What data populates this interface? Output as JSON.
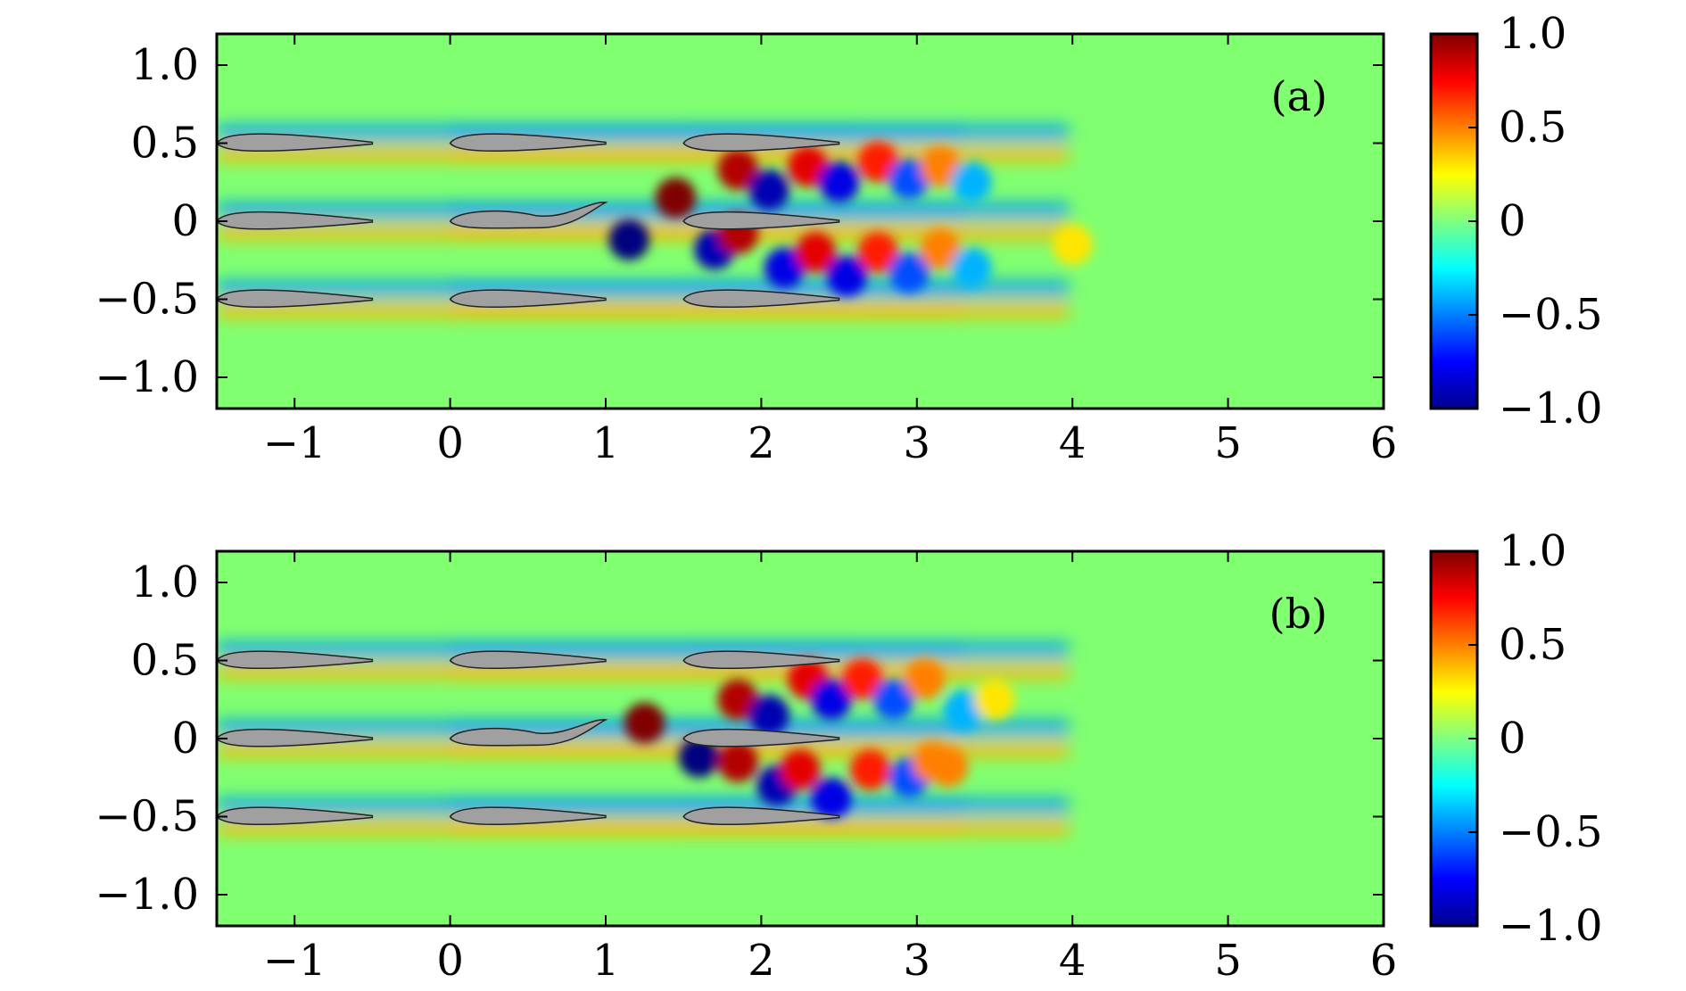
{
  "chart_data": [
    {
      "type": "heatmap",
      "panel_label": "(a)",
      "x_ticks": [
        "−1",
        "0",
        "1",
        "2",
        "3",
        "4",
        "5",
        "6"
      ],
      "x_tick_values": [
        -1,
        0,
        1,
        2,
        3,
        4,
        5,
        6
      ],
      "y_ticks": [
        "1.0",
        "0.5",
        "0",
        "−0.5",
        "−1.0"
      ],
      "y_tick_values": [
        1.0,
        0.5,
        0,
        -0.5,
        -1.0
      ],
      "xlim": [
        -1.5,
        6
      ],
      "ylim": [
        -1.2,
        1.2
      ],
      "colorbar": {
        "ticks": [
          "1.0",
          "0.5",
          "0",
          "−0.5",
          "−1.0"
        ],
        "tick_values": [
          1.0,
          0.5,
          0,
          -0.5,
          -1.0
        ],
        "range": [
          -1.0,
          1.0
        ],
        "colormap": "jet"
      },
      "airfoils": [
        {
          "x_le": -1.5,
          "x_te": -0.5,
          "y": 0.5
        },
        {
          "x_le": -1.5,
          "x_te": -0.5,
          "y": 0.0
        },
        {
          "x_le": -1.5,
          "x_te": -0.5,
          "y": -0.5
        },
        {
          "x_le": 0.0,
          "x_te": 1.0,
          "y": 0.5
        },
        {
          "x_le": 0.0,
          "x_te": 1.0,
          "y": 0.0,
          "deflected": true
        },
        {
          "x_le": 0.0,
          "x_te": 1.0,
          "y": -0.5
        },
        {
          "x_le": 1.5,
          "x_te": 2.5,
          "y": 0.5
        },
        {
          "x_le": 1.5,
          "x_te": 2.5,
          "y": 0.0
        },
        {
          "x_le": 1.5,
          "x_te": 2.5,
          "y": -0.5
        }
      ],
      "vortices": [
        {
          "x": 1.45,
          "y": 0.15,
          "v": 1.0
        },
        {
          "x": 1.15,
          "y": -0.12,
          "v": -1.0
        },
        {
          "x": 1.85,
          "y": 0.33,
          "v": 0.9
        },
        {
          "x": 2.05,
          "y": 0.2,
          "v": -0.9
        },
        {
          "x": 2.3,
          "y": 0.35,
          "v": 0.8
        },
        {
          "x": 2.5,
          "y": 0.25,
          "v": -0.8
        },
        {
          "x": 2.75,
          "y": 0.38,
          "v": 0.7
        },
        {
          "x": 2.95,
          "y": 0.27,
          "v": -0.6
        },
        {
          "x": 3.15,
          "y": 0.35,
          "v": 0.5
        },
        {
          "x": 3.35,
          "y": 0.25,
          "v": -0.4
        },
        {
          "x": 1.7,
          "y": -0.18,
          "v": -0.9
        },
        {
          "x": 1.85,
          "y": -0.08,
          "v": 0.9
        },
        {
          "x": 2.15,
          "y": -0.3,
          "v": -0.8
        },
        {
          "x": 2.35,
          "y": -0.2,
          "v": 0.8
        },
        {
          "x": 2.55,
          "y": -0.35,
          "v": -0.8
        },
        {
          "x": 2.75,
          "y": -0.2,
          "v": 0.7
        },
        {
          "x": 2.95,
          "y": -0.33,
          "v": -0.6
        },
        {
          "x": 3.15,
          "y": -0.18,
          "v": 0.5
        },
        {
          "x": 3.35,
          "y": -0.3,
          "v": -0.4
        },
        {
          "x": 4.0,
          "y": -0.15,
          "v": 0.3
        }
      ]
    },
    {
      "type": "heatmap",
      "panel_label": "(b)",
      "x_ticks": [
        "−1",
        "0",
        "1",
        "2",
        "3",
        "4",
        "5",
        "6"
      ],
      "x_tick_values": [
        -1,
        0,
        1,
        2,
        3,
        4,
        5,
        6
      ],
      "y_ticks": [
        "1.0",
        "0.5",
        "0",
        "−0.5",
        "−1.0"
      ],
      "y_tick_values": [
        1.0,
        0.5,
        0,
        -0.5,
        -1.0
      ],
      "xlim": [
        -1.5,
        6
      ],
      "ylim": [
        -1.2,
        1.2
      ],
      "colorbar": {
        "ticks": [
          "1.0",
          "0.5",
          "0",
          "−0.5",
          "−1.0"
        ],
        "tick_values": [
          1.0,
          0.5,
          0,
          -0.5,
          -1.0
        ],
        "range": [
          -1.0,
          1.0
        ],
        "colormap": "jet"
      },
      "airfoils": [
        {
          "x_le": -1.5,
          "x_te": -0.5,
          "y": 0.5
        },
        {
          "x_le": -1.5,
          "x_te": -0.5,
          "y": 0.0
        },
        {
          "x_le": -1.5,
          "x_te": -0.5,
          "y": -0.5
        },
        {
          "x_le": 0.0,
          "x_te": 1.0,
          "y": 0.5
        },
        {
          "x_le": 0.0,
          "x_te": 1.0,
          "y": 0.0,
          "deflected": true
        },
        {
          "x_le": 0.0,
          "x_te": 1.0,
          "y": -0.5
        },
        {
          "x_le": 1.5,
          "x_te": 2.5,
          "y": 0.5
        },
        {
          "x_le": 1.5,
          "x_te": 2.5,
          "y": 0.0
        },
        {
          "x_le": 1.5,
          "x_te": 2.5,
          "y": -0.5
        }
      ],
      "vortices": [
        {
          "x": 1.25,
          "y": 0.1,
          "v": 1.0
        },
        {
          "x": 1.6,
          "y": -0.12,
          "v": -1.0
        },
        {
          "x": 1.85,
          "y": 0.25,
          "v": 0.9
        },
        {
          "x": 2.05,
          "y": 0.15,
          "v": -0.9
        },
        {
          "x": 2.3,
          "y": 0.38,
          "v": 0.8
        },
        {
          "x": 2.45,
          "y": 0.25,
          "v": -0.8
        },
        {
          "x": 2.65,
          "y": 0.38,
          "v": 0.7
        },
        {
          "x": 2.85,
          "y": 0.25,
          "v": -0.6
        },
        {
          "x": 3.05,
          "y": 0.38,
          "v": 0.5
        },
        {
          "x": 3.3,
          "y": 0.18,
          "v": -0.4
        },
        {
          "x": 3.5,
          "y": 0.25,
          "v": 0.3
        },
        {
          "x": 1.85,
          "y": -0.15,
          "v": 0.9
        },
        {
          "x": 2.1,
          "y": -0.3,
          "v": -0.9
        },
        {
          "x": 2.25,
          "y": -0.2,
          "v": 0.8
        },
        {
          "x": 2.45,
          "y": -0.38,
          "v": -0.8
        },
        {
          "x": 2.7,
          "y": -0.2,
          "v": 0.7
        },
        {
          "x": 2.95,
          "y": -0.25,
          "v": -0.6
        },
        {
          "x": 3.1,
          "y": -0.15,
          "v": 0.5
        },
        {
          "x": 3.2,
          "y": -0.18,
          "v": 0.5
        }
      ]
    }
  ]
}
